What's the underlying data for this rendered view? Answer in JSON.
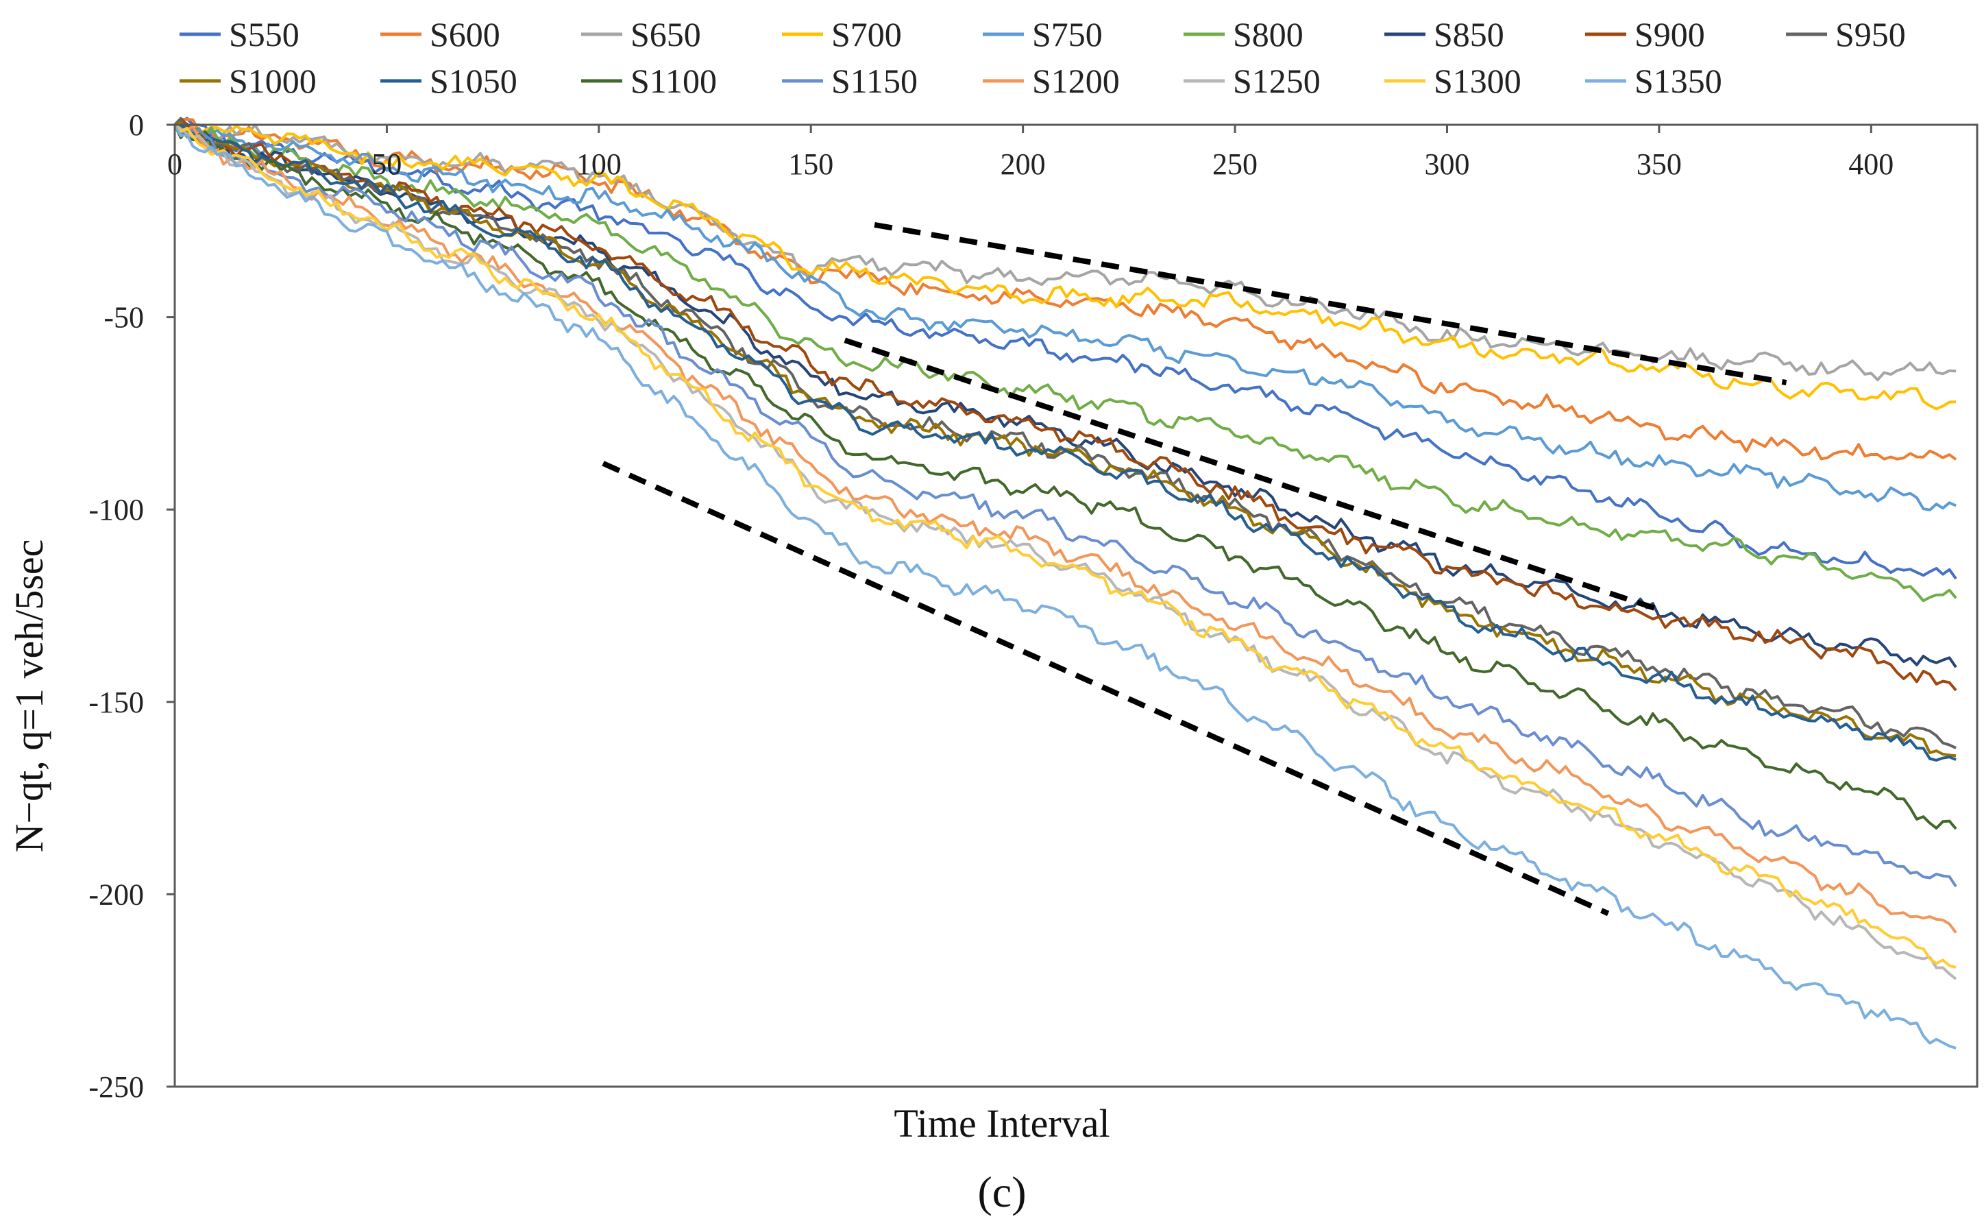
{
  "chart_data": {
    "type": "line",
    "title": "",
    "xlabel": "Time Interval",
    "ylabel": "N−qt, q=1 veh/5sec",
    "caption": "(c)",
    "xlim": [
      0,
      425
    ],
    "ylim": [
      -250,
      0
    ],
    "x_ticks": [
      0,
      50,
      100,
      150,
      200,
      250,
      300,
      350,
      400
    ],
    "x_tick_labels": [
      "0",
      "50",
      "100",
      "150",
      "200",
      "250",
      "300",
      "350",
      "400"
    ],
    "y_ticks": [
      0,
      -50,
      -100,
      -150,
      -200,
      -250
    ],
    "y_tick_labels": [
      "0",
      "-50",
      "-100",
      "-150",
      "-200",
      "-250"
    ],
    "legend_position": "top",
    "x": [
      0,
      10,
      25,
      50,
      75,
      100,
      125,
      150,
      155,
      160,
      175,
      200,
      225,
      250,
      275,
      300,
      325,
      350,
      375,
      400,
      420
    ],
    "series": [
      {
        "name": "S550",
        "color": "#4472C4",
        "values": [
          0,
          -3,
          -7,
          -11,
          -17,
          -23,
          -33,
          -47,
          -50,
          -50,
          -53,
          -57,
          -62,
          -68,
          -76,
          -85,
          -93,
          -101,
          -110,
          -114,
          -118
        ]
      },
      {
        "name": "S600",
        "color": "#ED7D31",
        "values": [
          0,
          -2,
          -4,
          -9,
          -11,
          -14,
          -25,
          -40,
          -37,
          -39,
          -42,
          -45,
          -47,
          -52,
          -60,
          -68,
          -73,
          -79,
          -83,
          -86,
          -87
        ]
      },
      {
        "name": "S650",
        "color": "#A5A5A5",
        "values": [
          0,
          -2,
          -3,
          -9,
          -10,
          -13,
          -24,
          -38,
          -35,
          -36,
          -37,
          -40,
          -40,
          -43,
          -48,
          -55,
          -57,
          -60,
          -62,
          -64,
          -64
        ]
      },
      {
        "name": "S700",
        "color": "#FFC000",
        "values": [
          0,
          -2,
          -3,
          -10,
          -10,
          -14,
          -24,
          -38,
          -37,
          -38,
          -41,
          -44,
          -45,
          -46,
          -51,
          -57,
          -60,
          -63,
          -68,
          -70,
          -72
        ]
      },
      {
        "name": "S750",
        "color": "#5B9BD5",
        "values": [
          0,
          -3,
          -6,
          -11,
          -15,
          -19,
          -27,
          -40,
          -45,
          -47,
          -51,
          -53,
          -57,
          -62,
          -67,
          -77,
          -83,
          -88,
          -91,
          -96,
          -99
        ]
      },
      {
        "name": "S800",
        "color": "#70AD47",
        "values": [
          0,
          -4,
          -8,
          -15,
          -20,
          -26,
          -40,
          -58,
          -60,
          -62,
          -63,
          -69,
          -74,
          -80,
          -88,
          -97,
          -103,
          -107,
          -111,
          -118,
          -123
        ]
      },
      {
        "name": "S850",
        "color": "#264478",
        "values": [
          0,
          -5,
          -10,
          -17,
          -25,
          -33,
          -48,
          -65,
          -67,
          -70,
          -73,
          -77,
          -85,
          -95,
          -105,
          -114,
          -120,
          -127,
          -132,
          -136,
          -141
        ]
      },
      {
        "name": "S900",
        "color": "#9E480E",
        "values": [
          0,
          -5,
          -9,
          -16,
          -23,
          -32,
          -46,
          -62,
          -65,
          -68,
          -72,
          -77,
          -85,
          -96,
          -107,
          -115,
          -122,
          -128,
          -133,
          -139,
          -147
        ]
      },
      {
        "name": "S950",
        "color": "#636363",
        "values": [
          0,
          -5,
          -10,
          -17,
          -25,
          -35,
          -52,
          -70,
          -72,
          -75,
          -78,
          -82,
          -89,
          -99,
          -111,
          -124,
          -133,
          -141,
          -149,
          -155,
          -162
        ]
      },
      {
        "name": "S1000",
        "color": "#997300",
        "values": [
          0,
          -5,
          -10,
          -17,
          -26,
          -36,
          -53,
          -71,
          -73,
          -76,
          -79,
          -83,
          -90,
          -100,
          -112,
          -126,
          -135,
          -143,
          -151,
          -157,
          -164
        ]
      },
      {
        "name": "S1050",
        "color": "#255E91",
        "values": [
          0,
          -5,
          -10,
          -18,
          -26,
          -37,
          -54,
          -72,
          -74,
          -77,
          -80,
          -84,
          -91,
          -101,
          -113,
          -127,
          -136,
          -144,
          -152,
          -158,
          -165
        ]
      },
      {
        "name": "S1100",
        "color": "#43682B",
        "values": [
          0,
          -6,
          -12,
          -21,
          -30,
          -42,
          -60,
          -78,
          -82,
          -85,
          -89,
          -94,
          -101,
          -112,
          -124,
          -137,
          -147,
          -156,
          -165,
          -173,
          -183
        ]
      },
      {
        "name": "S1150",
        "color": "#698ED0",
        "values": [
          0,
          -6,
          -13,
          -22,
          -32,
          -44,
          -63,
          -81,
          -86,
          -90,
          -95,
          -101,
          -111,
          -123,
          -135,
          -149,
          -160,
          -171,
          -182,
          -190,
          -198
        ]
      },
      {
        "name": "S1200",
        "color": "#F1975A",
        "values": [
          0,
          -7,
          -14,
          -25,
          -37,
          -48,
          -68,
          -88,
          -92,
          -96,
          -101,
          -107,
          -117,
          -130,
          -142,
          -157,
          -168,
          -180,
          -191,
          -201,
          -210
        ]
      },
      {
        "name": "S1250",
        "color": "#B7B7B7",
        "values": [
          0,
          -7,
          -15,
          -27,
          -38,
          -50,
          -71,
          -93,
          -97,
          -100,
          -104,
          -110,
          -120,
          -135,
          -148,
          -164,
          -175,
          -186,
          -198,
          -211,
          -222
        ]
      },
      {
        "name": "S1300",
        "color": "#FFCD33",
        "values": [
          0,
          -7,
          -15,
          -27,
          -38,
          -50,
          -71,
          -93,
          -97,
          -100,
          -104,
          -111,
          -121,
          -135,
          -148,
          -163,
          -174,
          -185,
          -196,
          -208,
          -219
        ]
      },
      {
        "name": "S1350",
        "color": "#7CAFDD",
        "values": [
          0,
          -8,
          -17,
          -30,
          -42,
          -55,
          -80,
          -103,
          -108,
          -112,
          -117,
          -124,
          -136,
          -151,
          -166,
          -182,
          -195,
          -207,
          -219,
          -230,
          -240
        ]
      }
    ],
    "annotations": [
      {
        "type": "dashed-trend-line",
        "name": "trend-upper",
        "from": [
          165,
          -26
        ],
        "to": [
          380,
          -67
        ]
      },
      {
        "type": "dashed-trend-line",
        "name": "trend-middle",
        "from": [
          158,
          -56
        ],
        "to": [
          350,
          -126
        ]
      },
      {
        "type": "dashed-trend-line",
        "name": "trend-lower",
        "from": [
          101,
          -88
        ],
        "to": [
          338,
          -205
        ]
      }
    ]
  }
}
